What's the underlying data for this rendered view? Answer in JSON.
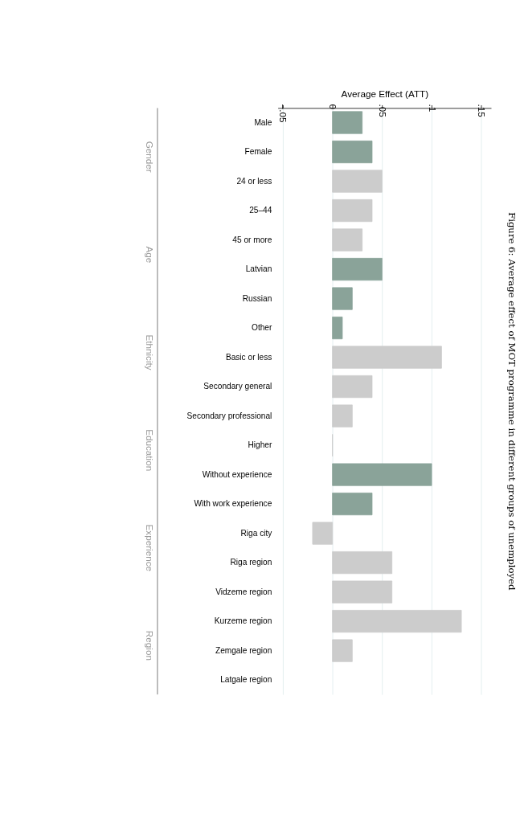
{
  "chart_data": {
    "type": "bar",
    "orientation": "horizontal",
    "title": "Figure 6: Average effect of MOT programme in different groups of unemployed",
    "xlabel": "Average Effect (ATT)",
    "categories": [
      "Male",
      "Female",
      "24 or less",
      "25–44",
      "45 or more",
      "Latvian",
      "Russian",
      "Other",
      "Basic or less",
      "Secondary general",
      "Secondary professional",
      "Higher",
      "Without experience",
      "With work experience",
      "Riga city",
      "Riga region",
      "Vidzeme region",
      "Kurzeme region",
      "Zemgale region",
      "Latgale region"
    ],
    "values": [
      0.03,
      0.04,
      0.05,
      0.04,
      0.03,
      0.05,
      0.02,
      0.01,
      0.11,
      0.04,
      0.02,
      0,
      0.1,
      0.04,
      -0.02,
      0.06,
      0.06,
      0.13,
      0.02,
      null
    ],
    "colors": [
      "#8aa399",
      "#8aa399",
      "#cccccc",
      "#cccccc",
      "#cccccc",
      "#8aa399",
      "#8aa399",
      "#8aa399",
      "#cccccc",
      "#cccccc",
      "#cccccc",
      "#cccccc",
      "#8aa399",
      "#8aa399",
      "#cccccc",
      "#cccccc",
      "#cccccc",
      "#cccccc",
      "#cccccc",
      "#cccccc"
    ],
    "xlim": [
      -0.055,
      0.16
    ],
    "xticks": [
      {
        "value": -0.05,
        "label": "−.05"
      },
      0,
      {
        "value": 0.05,
        "label": ".05"
      },
      {
        "value": 0.1,
        "label": ".1"
      },
      {
        "value": 0.15,
        "label": ".15"
      }
    ],
    "grid": "x",
    "annotations": [
      "Gender",
      "Age",
      "Ethnicity",
      "Education",
      "Experience",
      "Region"
    ]
  }
}
